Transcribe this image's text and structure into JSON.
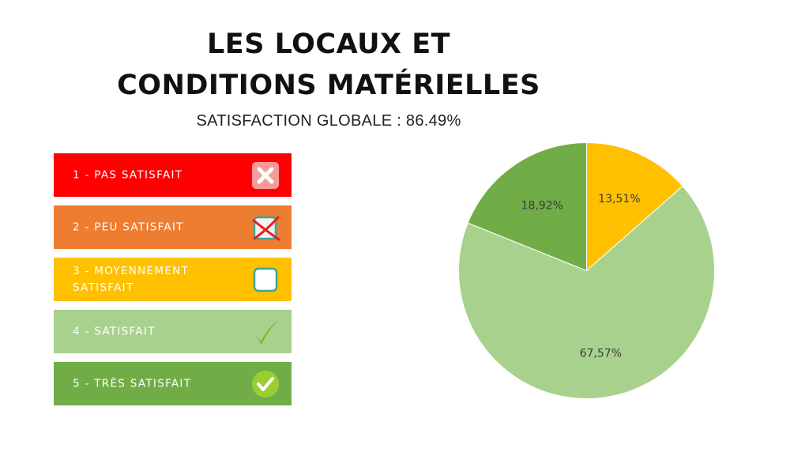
{
  "header": {
    "title_line1": "LES LOCAUX ET",
    "title_line2": "CONDITIONS MATÉRIELLES",
    "subtitle": "SATISFACTION GLOBALE : 86.49%"
  },
  "legend": {
    "items": [
      {
        "label": "1 - PAS SATISFAIT",
        "color": "#ff0000",
        "icon": "cross-box-icon"
      },
      {
        "label": "2 - PEU SATISFAIT",
        "color": "#ed7d31",
        "icon": "crossed-checkbox-icon"
      },
      {
        "label": "3 - MOYENNEMENT SATISFAIT",
        "color": "#ffc000",
        "icon": "empty-checkbox-icon"
      },
      {
        "label": "4 - SATISFAIT",
        "color": "#a9d18e",
        "icon": "checkmark-icon"
      },
      {
        "label": "5 - TRÈS SATISFAIT",
        "color": "#70ad47",
        "icon": "check-circle-icon"
      }
    ]
  },
  "chart_data": {
    "type": "pie",
    "slices": [
      {
        "category": "3 - MOYENNEMENT SATISFAIT",
        "value": 13.51,
        "label": "13,51%",
        "color": "#ffc000"
      },
      {
        "category": "4 - SATISFAIT",
        "value": 67.57,
        "label": "67,57%",
        "color": "#a9d18e"
      },
      {
        "category": "5 - TRÈS SATISFAIT",
        "value": 18.92,
        "label": "18,92%",
        "color": "#70ad47"
      }
    ],
    "start_angle_deg": 0,
    "direction": "clockwise"
  }
}
